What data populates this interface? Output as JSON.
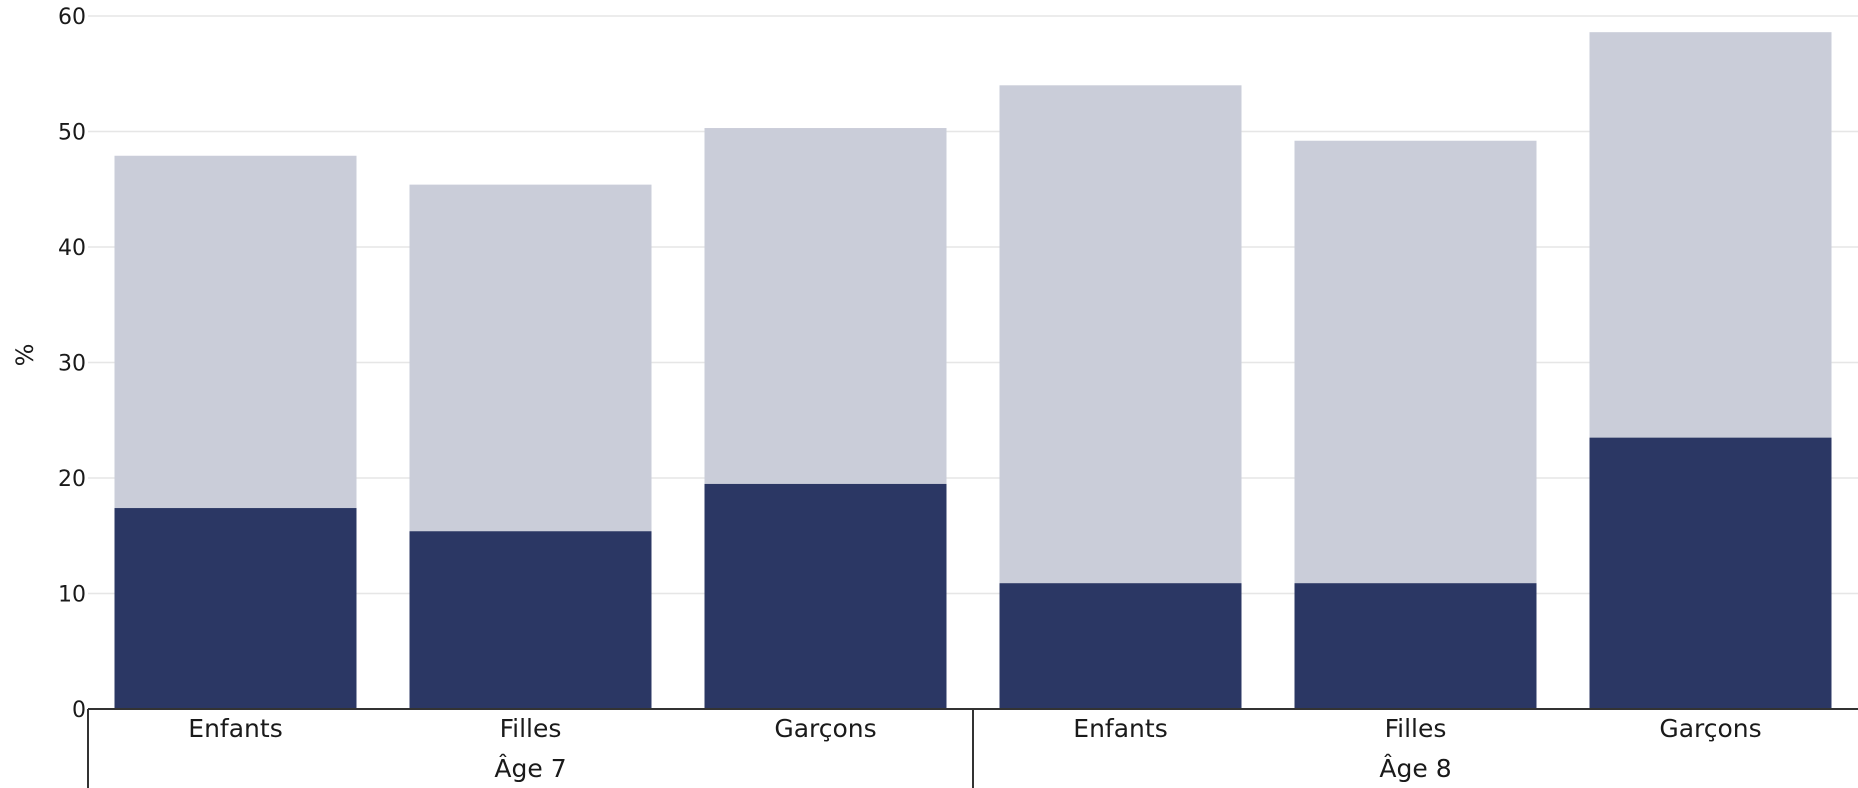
{
  "chart_data": {
    "type": "bar",
    "stacked": true,
    "groups": [
      {
        "label": "Âge 7",
        "categories": [
          "Enfants",
          "Filles",
          "Garçons"
        ]
      },
      {
        "label": "Âge 8",
        "categories": [
          "Enfants",
          "Filles",
          "Garçons"
        ]
      }
    ],
    "series": [
      {
        "values": [
          17.4,
          15.4,
          19.5,
          10.9,
          10.9,
          23.5
        ],
        "color": "#2b3764"
      },
      {
        "values": [
          30.5,
          30.0,
          30.8,
          43.1,
          38.3,
          35.1
        ],
        "color": "#cacdd9"
      }
    ],
    "ylabel": "%",
    "ylim": [
      0,
      60
    ],
    "yticks": [
      "0",
      "10",
      "20",
      "30",
      "40",
      "50",
      "60"
    ],
    "grid": true,
    "legend": "none"
  }
}
